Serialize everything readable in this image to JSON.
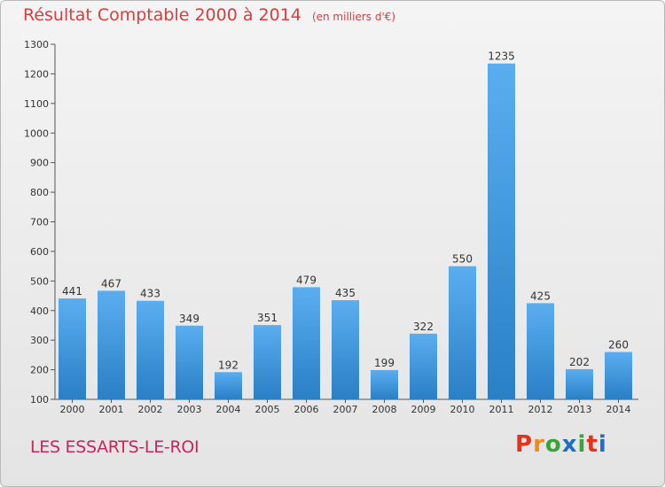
{
  "header": {
    "title": "Résultat Comptable 2000 à 2014",
    "subtitle": "(en milliers d'€)"
  },
  "footer": {
    "commune": "LES ESSARTS-LE-ROI",
    "brand_letters": [
      "P",
      "r",
      "o",
      "x",
      "i",
      "t",
      "i"
    ],
    "brand_colors": [
      "#e0341e",
      "#f08a1c",
      "#3aa33a",
      "#1e6fc4",
      "#3aa33a",
      "#e0341e",
      "#1e6fc4"
    ]
  },
  "colors": {
    "title": "#d43f3f",
    "commune": "#c5285a",
    "bar_light": "#5aaef0",
    "bar_dark": "#2a7fc5"
  },
  "chart_data": {
    "type": "bar",
    "categories": [
      "2000",
      "2001",
      "2002",
      "2003",
      "2004",
      "2005",
      "2006",
      "2007",
      "2008",
      "2009",
      "2010",
      "2011",
      "2012",
      "2013",
      "2014"
    ],
    "values": [
      441,
      467,
      433,
      349,
      192,
      351,
      479,
      435,
      199,
      322,
      550,
      1235,
      425,
      202,
      260
    ],
    "ylim": [
      100,
      1300
    ],
    "yticks": [
      100,
      200,
      300,
      400,
      500,
      600,
      700,
      800,
      900,
      1000,
      1100,
      1200,
      1300
    ],
    "grid": false
  }
}
